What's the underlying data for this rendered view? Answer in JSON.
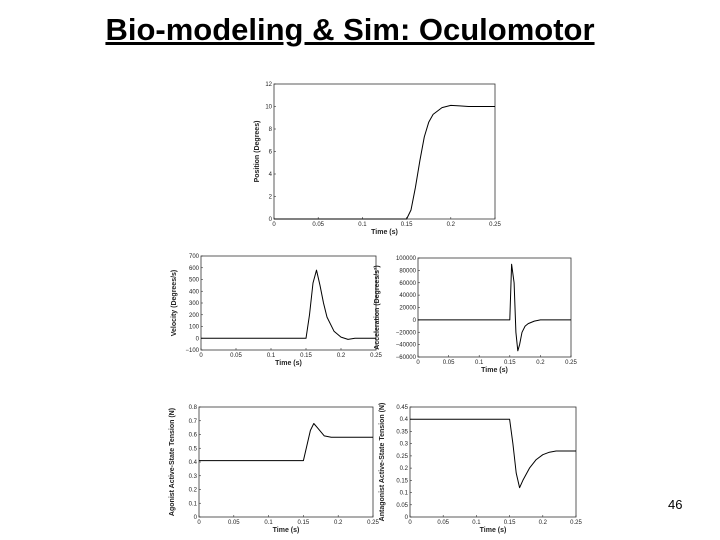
{
  "slide": {
    "title": "Bio-modeling & Sim: Oculomotor",
    "page_number": "46"
  },
  "chart_data": [
    {
      "type": "line",
      "xlabel": "Time (s)",
      "ylabel": "Position (Degrees)",
      "xlim": [
        0,
        0.25
      ],
      "ylim": [
        0,
        12
      ],
      "xticks": [
        0,
        0.05,
        0.1,
        0.15,
        0.2,
        0.25
      ],
      "xtick_labels": [
        "0",
        "0.05",
        "0.1",
        "0.15",
        "0.2",
        "0.25"
      ],
      "yticks": [
        0,
        2,
        4,
        6,
        8,
        10,
        12
      ],
      "ytick_labels": [
        "0",
        "2",
        "4",
        "6",
        "8",
        "10",
        "12"
      ],
      "series": [
        {
          "x": [
            0,
            0.15,
            0.155,
            0.16,
            0.165,
            0.17,
            0.175,
            0.18,
            0.19,
            0.2,
            0.21,
            0.22,
            0.25
          ],
          "y": [
            0,
            0,
            0.8,
            2.8,
            5.2,
            7.3,
            8.6,
            9.3,
            9.9,
            10.1,
            10.05,
            10.0,
            10.0
          ]
        }
      ]
    },
    {
      "type": "line",
      "xlabel": "Time (s)",
      "ylabel": "Velocity (Degrees/s)",
      "xlim": [
        0,
        0.25
      ],
      "ylim": [
        -100,
        700
      ],
      "xticks": [
        0,
        0.05,
        0.1,
        0.15,
        0.2,
        0.25
      ],
      "xtick_labels": [
        "0",
        "0.05",
        "0.1",
        "0.15",
        "0.2",
        "0.25"
      ],
      "yticks": [
        -100,
        0,
        100,
        200,
        300,
        400,
        500,
        600,
        700
      ],
      "ytick_labels": [
        "−100",
        "0",
        "100",
        "200",
        "300",
        "400",
        "500",
        "600",
        "700"
      ],
      "series": [
        {
          "x": [
            0,
            0.15,
            0.155,
            0.16,
            0.165,
            0.17,
            0.175,
            0.18,
            0.19,
            0.2,
            0.21,
            0.22,
            0.25
          ],
          "y": [
            0,
            0,
            200,
            470,
            580,
            450,
            300,
            180,
            60,
            10,
            -10,
            0,
            0
          ]
        }
      ]
    },
    {
      "type": "line",
      "xlabel": "Time (s)",
      "ylabel": "Acceleration (Degrees/s²)",
      "xlim": [
        0,
        0.25
      ],
      "ylim": [
        -60000,
        100000
      ],
      "xticks": [
        0,
        0.05,
        0.1,
        0.15,
        0.2,
        0.25
      ],
      "xtick_labels": [
        "0",
        "0.05",
        "0.1",
        "0.15",
        "0.2",
        "0.25"
      ],
      "yticks": [
        -60000,
        -40000,
        -20000,
        0,
        20000,
        40000,
        60000,
        80000,
        100000
      ],
      "ytick_labels": [
        "−60000",
        "−40000",
        "−20000",
        "0",
        "20000",
        "40000",
        "60000",
        "80000",
        "100000"
      ],
      "series": [
        {
          "x": [
            0,
            0.15,
            0.153,
            0.157,
            0.16,
            0.163,
            0.166,
            0.17,
            0.175,
            0.18,
            0.19,
            0.2,
            0.25
          ],
          "y": [
            0,
            0,
            90000,
            60000,
            -20000,
            -50000,
            -40000,
            -20000,
            -10000,
            -6000,
            -2000,
            0,
            0
          ]
        }
      ]
    },
    {
      "type": "line",
      "xlabel": "Time (s)",
      "ylabel": "Agonist Active-State Tension (N)",
      "xlim": [
        0,
        0.25
      ],
      "ylim": [
        0,
        0.8
      ],
      "xticks": [
        0,
        0.05,
        0.1,
        0.15,
        0.2,
        0.25
      ],
      "xtick_labels": [
        "0",
        "0.05",
        "0.1",
        "0.15",
        "0.2",
        "0.25"
      ],
      "yticks": [
        0,
        0.1,
        0.2,
        0.3,
        0.4,
        0.5,
        0.6,
        0.7,
        0.8
      ],
      "ytick_labels": [
        "0",
        "0.1",
        "0.2",
        "0.3",
        "0.4",
        "0.5",
        "0.6",
        "0.7",
        "0.8"
      ],
      "series": [
        {
          "x": [
            0,
            0.15,
            0.155,
            0.16,
            0.165,
            0.17,
            0.18,
            0.19,
            0.25
          ],
          "y": [
            0.41,
            0.41,
            0.52,
            0.63,
            0.68,
            0.65,
            0.59,
            0.58,
            0.58
          ]
        }
      ]
    },
    {
      "type": "line",
      "xlabel": "Time (s)",
      "ylabel": "Antagonist Active-State Tension (N)",
      "xlim": [
        0,
        0.25
      ],
      "ylim": [
        0,
        0.45
      ],
      "xticks": [
        0,
        0.05,
        0.1,
        0.15,
        0.2,
        0.25
      ],
      "xtick_labels": [
        "0",
        "0.05",
        "0.1",
        "0.15",
        "0.2",
        "0.25"
      ],
      "yticks": [
        0,
        0.05,
        0.1,
        0.15,
        0.2,
        0.25,
        0.3,
        0.35,
        0.4,
        0.45
      ],
      "ytick_labels": [
        "0",
        "0.05",
        "0.1",
        "0.15",
        "0.2",
        "0.25",
        "0.3",
        "0.35",
        "0.4",
        "0.45"
      ],
      "series": [
        {
          "x": [
            0,
            0.15,
            0.155,
            0.16,
            0.165,
            0.17,
            0.18,
            0.19,
            0.2,
            0.21,
            0.22,
            0.25
          ],
          "y": [
            0.4,
            0.4,
            0.3,
            0.18,
            0.12,
            0.15,
            0.2,
            0.235,
            0.255,
            0.265,
            0.27,
            0.27
          ]
        }
      ]
    }
  ]
}
